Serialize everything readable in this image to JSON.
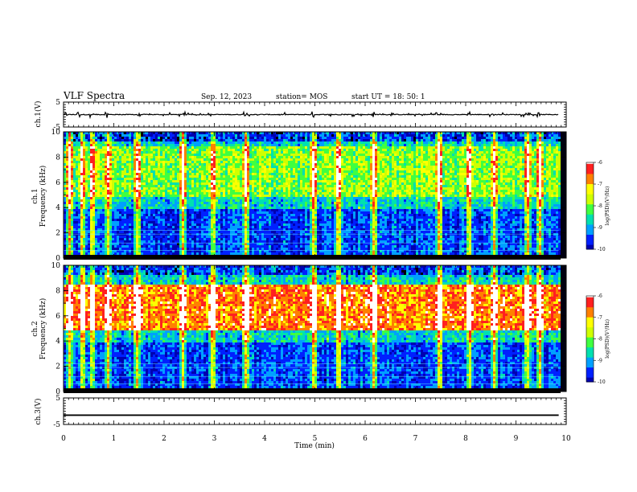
{
  "header": {
    "title": "VLF Spectra",
    "date": "Sep. 12, 2023",
    "station": "station= MOS",
    "start_ut": "start  UT =   18: 50: 1"
  },
  "chart_data": [
    {
      "type": "line",
      "name": "ch1-waveform",
      "ylabel": "ch.1(V)",
      "ylim": [
        -5,
        5
      ],
      "yticks": [
        "5",
        "-5"
      ],
      "baseline": 0,
      "bursts_min": [
        0.05,
        0.3,
        0.55,
        0.86,
        1.5,
        2.4,
        3.6,
        4.95,
        5.3,
        6.15,
        7.4,
        8.05,
        9.45
      ]
    },
    {
      "type": "heatmap",
      "name": "ch1-spectrogram",
      "ylabel": "ch.1\nFrequency (kHz)",
      "ylim": [
        0,
        10
      ],
      "yticks": [
        "0",
        "2",
        "4",
        "6",
        "8",
        "10"
      ],
      "dominant_band_khz": [
        5,
        9
      ],
      "sferic_times_min": [
        0.1,
        0.35,
        0.55,
        0.86,
        1.45,
        2.35,
        2.95,
        3.6,
        4.95,
        5.45,
        6.15,
        7.45,
        8.05,
        8.55,
        9.2,
        9.45
      ],
      "colorbar": {
        "label": "log(PSD)(V²/Hz)",
        "ticks": [
          "-6",
          "-7",
          "-8",
          "-9",
          "-10"
        ],
        "range": [
          -10,
          -6
        ]
      }
    },
    {
      "type": "heatmap",
      "name": "ch2-spectrogram",
      "ylabel": "ch.2\nFrequency (kHz)",
      "ylim": [
        0,
        10
      ],
      "yticks": [
        "0",
        "2",
        "4",
        "6",
        "8",
        "10"
      ],
      "dominant_band_khz": [
        5,
        8.5
      ],
      "sferic_times_min": [
        0.1,
        0.35,
        0.55,
        0.86,
        1.45,
        2.35,
        2.95,
        3.6,
        4.95,
        5.45,
        6.15,
        7.45,
        8.05,
        8.55,
        9.2,
        9.45
      ],
      "colorbar": {
        "label": "log(PSD)(V²/Hz)",
        "ticks": [
          "-6",
          "-7",
          "-8",
          "-9",
          "-10"
        ],
        "range": [
          -10,
          -6
        ]
      }
    },
    {
      "type": "line",
      "name": "ch3-waveform",
      "ylabel": "ch.3(V)",
      "ylim": [
        -5,
        5
      ],
      "yticks": [
        "5",
        "-5"
      ],
      "baseline": -1.5
    }
  ],
  "xaxis": {
    "label": "Time (min)",
    "ticks": [
      "0",
      "1",
      "2",
      "3",
      "4",
      "5",
      "6",
      "7",
      "8",
      "9",
      "10"
    ],
    "xlim": [
      0,
      10
    ],
    "data_end_min": 9.85
  },
  "colors": {
    "colormap": [
      "#000000",
      "#0000b0",
      "#0020ff",
      "#00a0ff",
      "#00e0b0",
      "#40ff40",
      "#d0ff00",
      "#ffff00",
      "#ff8000",
      "#ff2020",
      "#ffffff"
    ]
  }
}
